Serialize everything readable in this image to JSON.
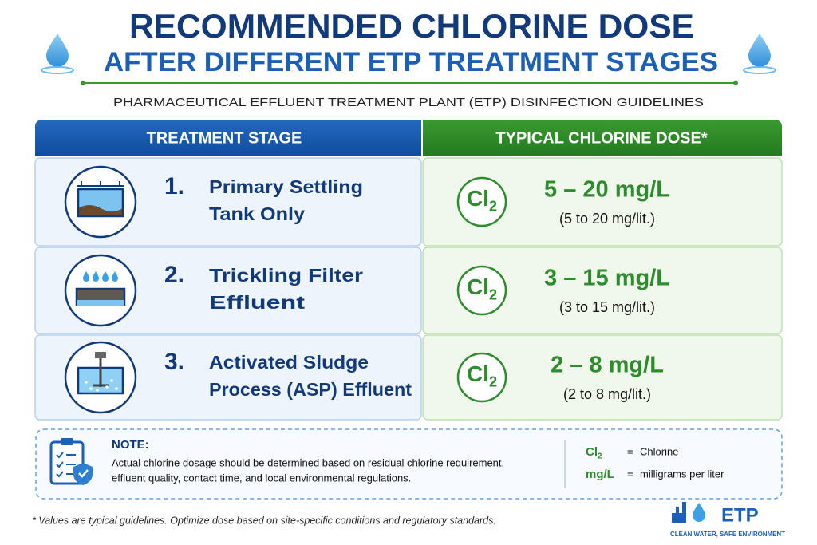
{
  "header": {
    "title_line1": "RECOMMENDED CHLORINE DOSE",
    "title_line2": "AFTER DIFFERENT ETP TREATMENT STAGES",
    "subtitle": "PHARMACEUTICAL EFFLUENT TREATMENT PLANT (ETP) DISINFECTION GUIDELINES"
  },
  "table": {
    "columns": [
      "TREATMENT STAGE",
      "TYPICAL CHLORINE DOSE*"
    ],
    "rows": [
      {
        "number": "1.",
        "stage": [
          "Primary Settling",
          "Tank Only"
        ],
        "formula": {
          "base": "Cl",
          "sub": "2"
        },
        "dose": "5 – 20 mg/L",
        "dose_alt": "(5 to 20 mg/lit.)"
      },
      {
        "number": "2.",
        "stage": [
          "Trickling Filter",
          "Effluent"
        ],
        "formula": {
          "base": "Cl",
          "sub": "2"
        },
        "dose": "3 – 15 mg/L",
        "dose_alt": "(3 to 15 mg/lit.)"
      },
      {
        "number": "3.",
        "stage": [
          "Activated Sludge",
          "Process (ASP) Effluent"
        ],
        "formula": {
          "base": "Cl",
          "sub": "2"
        },
        "dose": "2 – 8 mg/L",
        "dose_alt": "(2 to 8 mg/lit.)"
      }
    ]
  },
  "note": {
    "heading": "NOTE:",
    "lines": [
      "Actual chlorine dosage should be determined based on residual chlorine requirement,",
      "effluent quality, contact time, and local environmental regulations."
    ],
    "legend": [
      {
        "symbol": {
          "base": "Cl",
          "sub": "2"
        },
        "separator": "=",
        "meaning": "Chlorine"
      },
      {
        "symbol": {
          "base": "mg/L"
        },
        "separator": "=",
        "meaning": "milligrams per liter"
      }
    ]
  },
  "footnote": "* Values are typical guidelines. Optimize dose based on site-specific conditions and regulatory standards.",
  "logo": {
    "name": "ETP",
    "tagline": "CLEAN WATER, SAFE ENVIRONMENT"
  }
}
